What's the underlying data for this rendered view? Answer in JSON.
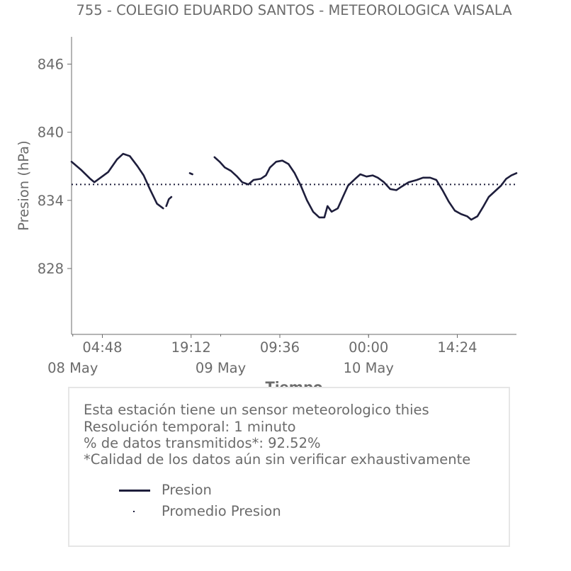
{
  "chart_data": {
    "type": "line",
    "title": "755 - COLEGIO EDUARDO SANTOS - METEOROLOGICA VAISALA",
    "xlabel": "Tiempo",
    "ylabel": "Presion (hPa)",
    "ylim": [
      822.2,
      848.4
    ],
    "xlim": [
      "2024-05-07 23:48",
      "2024-05-11 00:00"
    ],
    "yticks": [
      828,
      834,
      840,
      846
    ],
    "xticks": [
      {
        "time": "2024-05-08 04:48",
        "label": "04:48"
      },
      {
        "time": "2024-05-08 19:12",
        "label": "19:12"
      },
      {
        "time": "2024-05-09 09:36",
        "label": "09:36"
      },
      {
        "time": "2024-05-10 00:00",
        "label": "00:00"
      },
      {
        "time": "2024-05-10 14:24",
        "label": "14:24"
      }
    ],
    "date_ticks": [
      {
        "time": "2024-05-08 00:00",
        "label": "08 May"
      },
      {
        "time": "2024-05-09 00:00",
        "label": "09 May"
      },
      {
        "time": "2024-05-10 00:00",
        "label": "10 May"
      }
    ],
    "grid": false,
    "series": [
      {
        "name": "Presion",
        "color": "#1e1e3c",
        "segments": [
          [
            [
              "2024-05-07 23:48",
              837.4
            ],
            [
              "2024-05-08 01:20",
              836.7
            ],
            [
              "2024-05-08 02:50",
              835.9
            ],
            [
              "2024-05-08 03:30",
              835.6
            ],
            [
              "2024-05-08 04:30",
              836.0
            ],
            [
              "2024-05-08 05:45",
              836.5
            ],
            [
              "2024-05-08 07:10",
              837.6
            ],
            [
              "2024-05-08 08:10",
              838.1
            ],
            [
              "2024-05-08 09:15",
              837.9
            ],
            [
              "2024-05-08 10:30",
              837.0
            ],
            [
              "2024-05-08 11:30",
              836.2
            ],
            [
              "2024-05-08 12:30",
              835.0
            ],
            [
              "2024-05-08 13:40",
              833.7
            ],
            [
              "2024-05-08 14:40",
              833.3
            ]
          ],
          [
            [
              "2024-05-08 15:10",
              833.5
            ],
            [
              "2024-05-08 15:35",
              834.1
            ],
            [
              "2024-05-08 16:00",
              834.3
            ]
          ],
          [
            [
              "2024-05-08 19:00",
              836.4
            ],
            [
              "2024-05-08 19:25",
              836.3
            ]
          ],
          [
            [
              "2024-05-08 23:00",
              837.8
            ],
            [
              "2024-05-08 23:50",
              837.4
            ],
            [
              "2024-05-09 00:40",
              836.9
            ],
            [
              "2024-05-09 01:40",
              836.6
            ],
            [
              "2024-05-09 02:40",
              836.1
            ],
            [
              "2024-05-09 03:30",
              835.6
            ],
            [
              "2024-05-09 04:30",
              835.4
            ],
            [
              "2024-05-09 05:20",
              835.8
            ],
            [
              "2024-05-09 06:30",
              835.9
            ],
            [
              "2024-05-09 07:20",
              836.2
            ],
            [
              "2024-05-09 08:00",
              836.9
            ],
            [
              "2024-05-09 09:00",
              837.4
            ],
            [
              "2024-05-09 10:00",
              837.5
            ],
            [
              "2024-05-09 11:00",
              837.2
            ],
            [
              "2024-05-09 12:00",
              836.4
            ],
            [
              "2024-05-09 13:00",
              835.3
            ],
            [
              "2024-05-09 14:00",
              834.0
            ],
            [
              "2024-05-09 15:00",
              833.0
            ],
            [
              "2024-05-09 16:00",
              832.5
            ],
            [
              "2024-05-09 16:50",
              832.5
            ],
            [
              "2024-05-09 17:20",
              833.5
            ],
            [
              "2024-05-09 18:00",
              833.0
            ],
            [
              "2024-05-09 19:00",
              833.3
            ],
            [
              "2024-05-09 19:50",
              834.3
            ],
            [
              "2024-05-09 20:40",
              835.3
            ],
            [
              "2024-05-09 21:50",
              835.9
            ],
            [
              "2024-05-09 22:40",
              836.3
            ],
            [
              "2024-05-09 23:40",
              836.1
            ],
            [
              "2024-05-10 00:40",
              836.2
            ],
            [
              "2024-05-10 01:30",
              836.0
            ],
            [
              "2024-05-10 02:30",
              835.6
            ],
            [
              "2024-05-10 03:30",
              835.0
            ],
            [
              "2024-05-10 04:30",
              834.9
            ],
            [
              "2024-05-10 05:20",
              835.2
            ],
            [
              "2024-05-10 06:30",
              835.6
            ],
            [
              "2024-05-10 07:50",
              835.8
            ],
            [
              "2024-05-10 08:50",
              836.0
            ],
            [
              "2024-05-10 10:00",
              836.0
            ],
            [
              "2024-05-10 11:00",
              835.8
            ],
            [
              "2024-05-10 12:00",
              834.9
            ],
            [
              "2024-05-10 13:00",
              833.9
            ],
            [
              "2024-05-10 14:00",
              833.1
            ],
            [
              "2024-05-10 15:00",
              832.8
            ],
            [
              "2024-05-10 16:00",
              832.6
            ],
            [
              "2024-05-10 16:40",
              832.3
            ],
            [
              "2024-05-10 17:40",
              832.6
            ],
            [
              "2024-05-10 18:40",
              833.5
            ],
            [
              "2024-05-10 19:30",
              834.3
            ],
            [
              "2024-05-10 20:30",
              834.8
            ],
            [
              "2024-05-10 21:30",
              835.3
            ],
            [
              "2024-05-10 22:20",
              835.9
            ],
            [
              "2024-05-10 23:10",
              836.2
            ],
            [
              "2024-05-11 00:00",
              836.4
            ]
          ]
        ]
      },
      {
        "name": "Promedio Presion",
        "color": "#1e1e3c",
        "style": "dotted",
        "value": 835.4
      }
    ]
  },
  "info": {
    "line1": "Esta estación tiene un sensor meteorologico thies",
    "line2": "Resolución temporal: 1 minuto",
    "line3": "% de datos transmitidos*: 92.52%",
    "line4": "*Calidad de los datos aún sin verificar exhaustivamente"
  },
  "legend": {
    "presion": "Presion",
    "promedio": "Promedio Presion"
  },
  "colors": {
    "series": "#1e1e3c",
    "text": "#6b6b6b",
    "axis": "#6b6b6b",
    "box_border": "#e6e6e6"
  }
}
